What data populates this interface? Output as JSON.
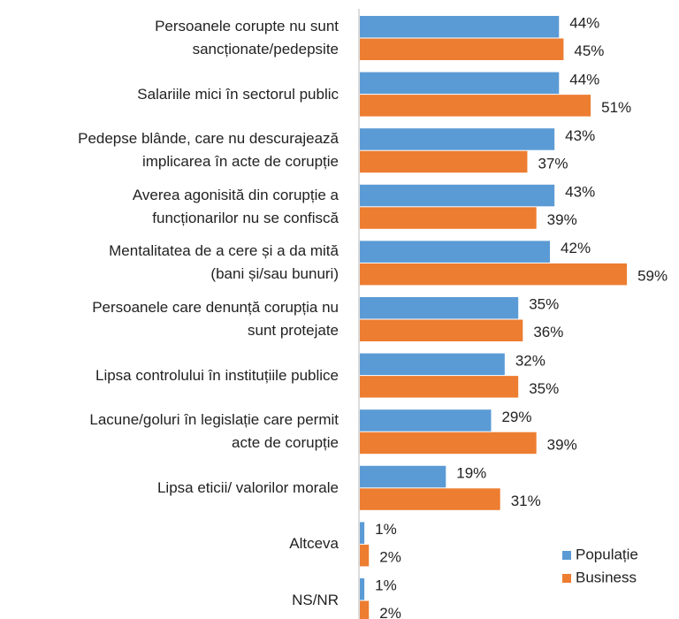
{
  "chart_data": {
    "type": "bar",
    "orientation": "horizontal",
    "categories": [
      "Persoanele corupte nu sunt\nsancționate/pedepsite",
      "Salariile mici în sectorul public",
      "Pedepse blânde, care nu descurajează\nimplicarea în acte de corupție",
      "Averea agonisită din corupție a\nfuncționarilor nu se confiscă",
      "Mentalitatea de a cere și a da mită\n(bani și/sau bunuri)",
      "Persoanele care denunță corupția nu\nsunt protejate",
      "Lipsa controlului în instituțiile publice",
      "Lacune/goluri în legislație care permit\nacte de corupție",
      "Lipsa eticii/ valorilor morale",
      "Altceva",
      "NS/NR"
    ],
    "series": [
      {
        "name": "Populație",
        "color": "#5b9bd5",
        "values": [
          44,
          44,
          43,
          43,
          42,
          35,
          32,
          29,
          19,
          1,
          1
        ],
        "value_labels": [
          "44%",
          "44%",
          "43%",
          "43%",
          "42%",
          "35%",
          "32%",
          "29%",
          "19%",
          "1%",
          "1%"
        ]
      },
      {
        "name": "Business",
        "color": "#ed7d31",
        "values": [
          45,
          51,
          37,
          39,
          59,
          36,
          35,
          39,
          31,
          2,
          2
        ],
        "value_labels": [
          "45%",
          "51%",
          "37%",
          "39%",
          "59%",
          "36%",
          "35%",
          "39%",
          "31%",
          "2%",
          "2%"
        ]
      }
    ],
    "legend": "bottom-right"
  }
}
